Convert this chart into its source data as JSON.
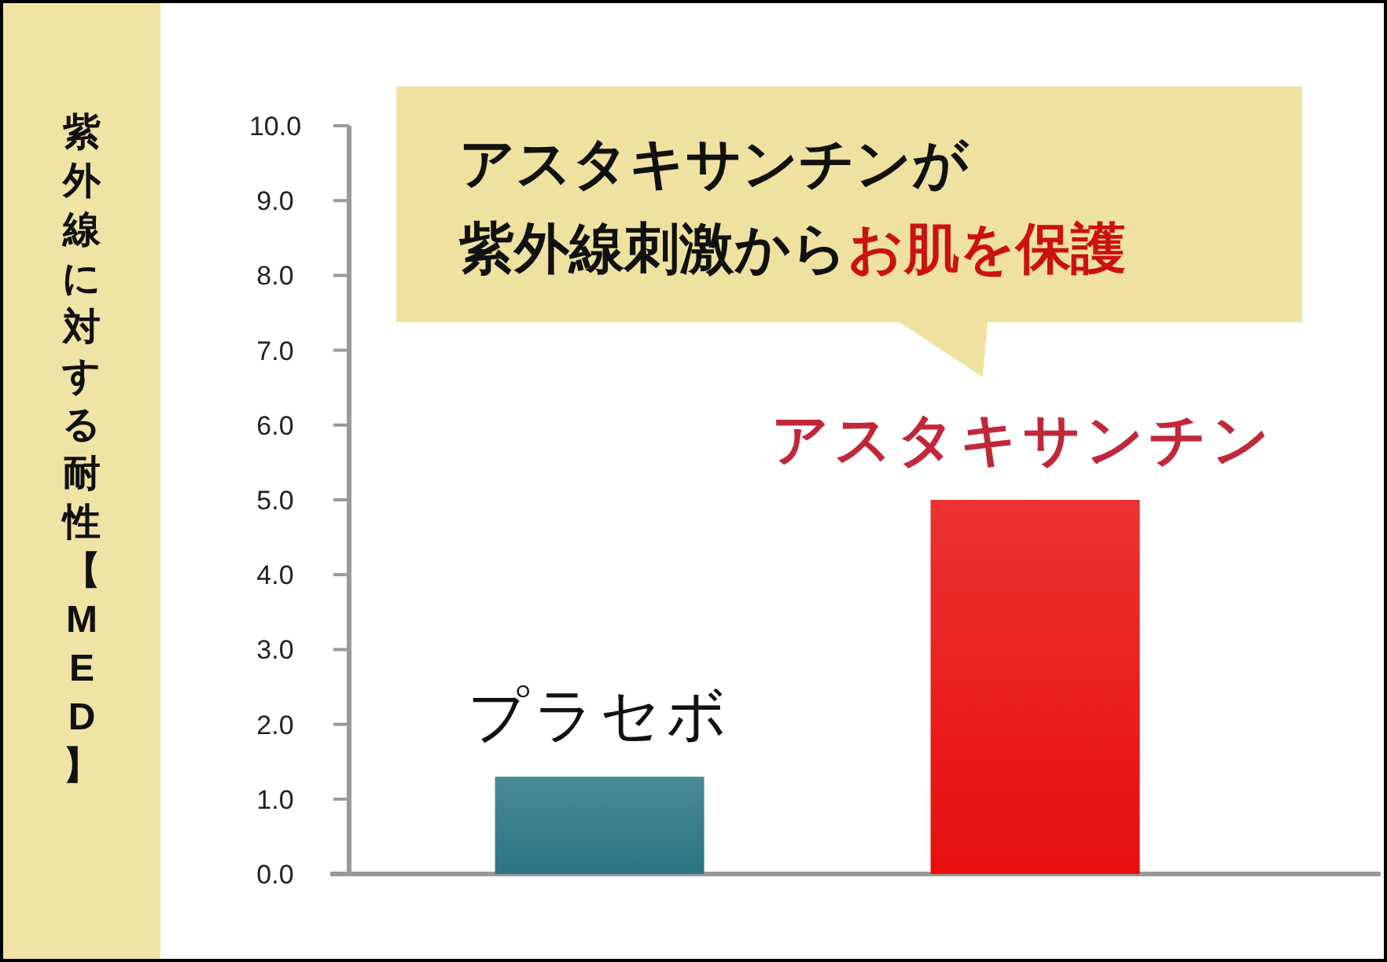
{
  "chart_data": {
    "type": "bar",
    "ylabel": "紫外線に対する耐性【MED】",
    "categories": [
      "プラセボ",
      "アスタキサンチン"
    ],
    "values": [
      1.3,
      5.0
    ],
    "colors": [
      "#2a7582",
      "#e80e0e"
    ],
    "ylim": [
      0,
      10
    ],
    "yticks": [
      {
        "value": 0,
        "label": "0.0"
      },
      {
        "value": 1,
        "label": "1.0"
      },
      {
        "value": 2,
        "label": "2.0"
      },
      {
        "value": 3,
        "label": "3.0"
      },
      {
        "value": 4,
        "label": "4.0"
      },
      {
        "value": 5,
        "label": "5.0"
      },
      {
        "value": 6,
        "label": "6.0"
      },
      {
        "value": 7,
        "label": "7.0"
      },
      {
        "value": 8,
        "label": "8.0"
      },
      {
        "value": 9,
        "label": "9.0"
      },
      {
        "value": 10,
        "label": "10.0"
      }
    ],
    "annotations": [
      "アスタキサンチンが",
      "紫外線刺激からお肌を保護"
    ],
    "grid": false
  }
}
